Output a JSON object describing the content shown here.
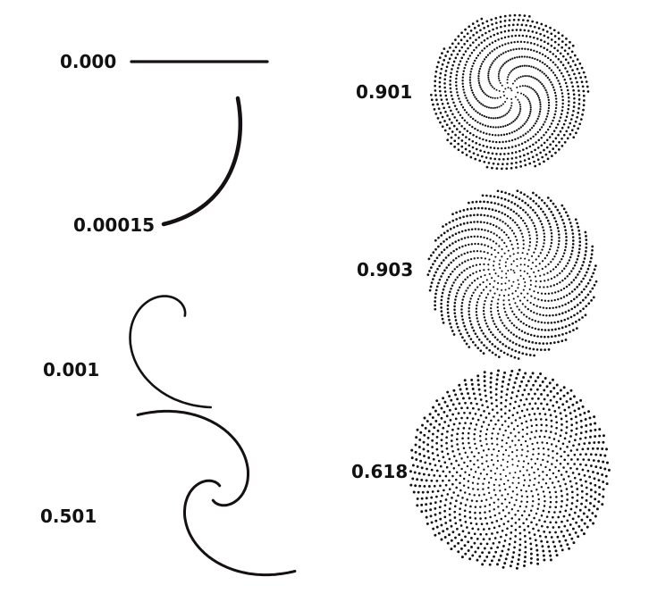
{
  "ink_color": "#141014",
  "background_color": "#ffffff",
  "panels": [
    {
      "label": "0.000",
      "kind": "curve"
    },
    {
      "label": "0.00015",
      "kind": "curve"
    },
    {
      "label": "0.001",
      "kind": "curve"
    },
    {
      "label": "0.501",
      "kind": "curve"
    },
    {
      "label": "0.901",
      "kind": "dots"
    },
    {
      "label": "0.903",
      "kind": "dots"
    },
    {
      "label": "0.618",
      "kind": "dots"
    }
  ]
}
